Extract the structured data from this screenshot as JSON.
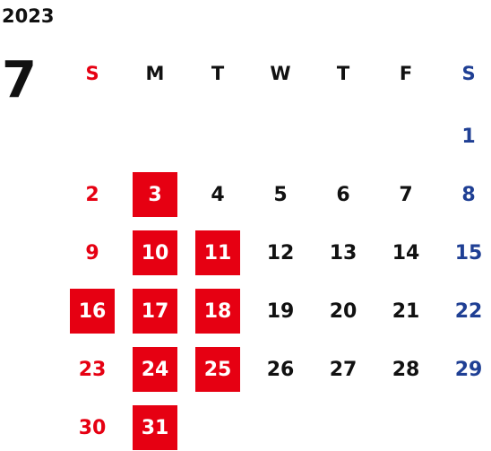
{
  "calendar": {
    "year": "2023",
    "month": "7",
    "weekday_labels": [
      "S",
      "M",
      "T",
      "W",
      "T",
      "F",
      "S"
    ],
    "days": [
      {
        "label": "1",
        "col": 6,
        "row": 0
      },
      {
        "label": "2",
        "col": 0,
        "row": 1
      },
      {
        "label": "3",
        "col": 1,
        "row": 1,
        "highlighted": true
      },
      {
        "label": "4",
        "col": 2,
        "row": 1
      },
      {
        "label": "5",
        "col": 3,
        "row": 1
      },
      {
        "label": "6",
        "col": 4,
        "row": 1
      },
      {
        "label": "7",
        "col": 5,
        "row": 1
      },
      {
        "label": "8",
        "col": 6,
        "row": 1
      },
      {
        "label": "9",
        "col": 0,
        "row": 2
      },
      {
        "label": "10",
        "col": 1,
        "row": 2,
        "highlighted": true
      },
      {
        "label": "11",
        "col": 2,
        "row": 2,
        "highlighted": true
      },
      {
        "label": "12",
        "col": 3,
        "row": 2
      },
      {
        "label": "13",
        "col": 4,
        "row": 2
      },
      {
        "label": "14",
        "col": 5,
        "row": 2
      },
      {
        "label": "15",
        "col": 6,
        "row": 2
      },
      {
        "label": "16",
        "col": 0,
        "row": 3,
        "highlighted": true
      },
      {
        "label": "17",
        "col": 1,
        "row": 3,
        "highlighted": true
      },
      {
        "label": "18",
        "col": 2,
        "row": 3,
        "highlighted": true
      },
      {
        "label": "19",
        "col": 3,
        "row": 3
      },
      {
        "label": "20",
        "col": 4,
        "row": 3
      },
      {
        "label": "21",
        "col": 5,
        "row": 3
      },
      {
        "label": "22",
        "col": 6,
        "row": 3
      },
      {
        "label": "23",
        "col": 0,
        "row": 4
      },
      {
        "label": "24",
        "col": 1,
        "row": 4,
        "highlighted": true
      },
      {
        "label": "25",
        "col": 2,
        "row": 4,
        "highlighted": true
      },
      {
        "label": "26",
        "col": 3,
        "row": 4
      },
      {
        "label": "27",
        "col": 4,
        "row": 4
      },
      {
        "label": "28",
        "col": 5,
        "row": 4
      },
      {
        "label": "29",
        "col": 6,
        "row": 4
      },
      {
        "label": "30",
        "col": 0,
        "row": 5
      },
      {
        "label": "31",
        "col": 1,
        "row": 5,
        "highlighted": true
      }
    ]
  },
  "colors": {
    "sunday": "#e60012",
    "saturday": "#1f3f94",
    "weekday": "#111111",
    "highlight_bg": "#e60012",
    "highlight_text": "#ffffff"
  }
}
